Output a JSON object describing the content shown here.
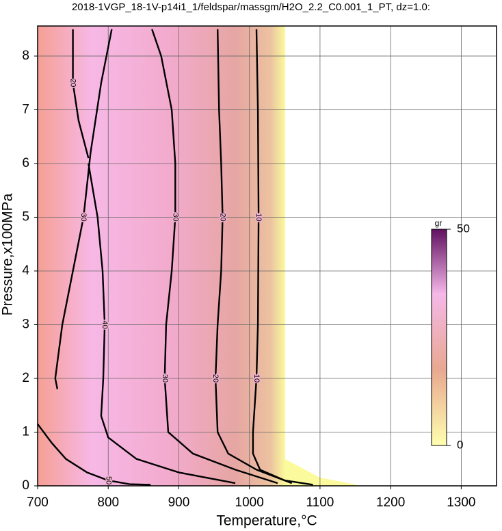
{
  "chart_data": {
    "type": "contour",
    "title": "2018-1VGP_18-1V-p14i1_1/feldspar/massgm/H2O_2.2_C0.001_1_PT, dz=1.0:",
    "xlabel": "Temperature,°C",
    "ylabel": "Pressure,x100MPa",
    "xlim": [
      700,
      1350
    ],
    "ylim": [
      0,
      8.5
    ],
    "xticks": [
      700,
      800,
      900,
      1000,
      1100,
      1200,
      1300
    ],
    "yticks": [
      0,
      1,
      2,
      3,
      4,
      5,
      6,
      7,
      8
    ],
    "grid": true,
    "contours": [
      {
        "level": 30,
        "x": [
          862,
          875,
          890,
          895,
          895,
          890,
          882,
          880,
          885,
          920,
          980,
          1040
        ],
        "y": [
          8.5,
          8,
          7,
          6,
          5,
          4,
          3,
          2,
          1,
          0.6,
          0.3,
          0.05
        ]
      },
      {
        "level": 20,
        "x": [
          955,
          957,
          960,
          962,
          960,
          955,
          952,
          955,
          970,
          1010,
          1060
        ],
        "y": [
          8.5,
          7,
          6,
          5,
          4,
          3,
          2,
          1,
          0.6,
          0.3,
          0.05
        ]
      },
      {
        "level": 10,
        "x": [
          1010,
          1012,
          1013,
          1012,
          1010,
          1005,
          1005,
          1015,
          1050,
          1090
        ],
        "y": [
          8.5,
          7,
          5,
          3,
          2,
          1,
          0.6,
          0.3,
          0.1,
          0.02
        ]
      },
      {
        "level": 40,
        "x": [
          772,
          785,
          792,
          795,
          793,
          790,
          800,
          840,
          900,
          980
        ],
        "y": [
          6.0,
          5,
          4,
          3,
          2,
          1.3,
          0.9,
          0.5,
          0.25,
          0.05
        ]
      },
      {
        "level": 20,
        "x": [
          750,
          750,
          758,
          772
        ],
        "y": [
          8.5,
          7.5,
          6.8,
          6.1
        ]
      },
      {
        "level": 30,
        "x": [
          805,
          790,
          775,
          765,
          750,
          735,
          725,
          728
        ],
        "y": [
          8.5,
          7.5,
          6.2,
          5,
          4,
          3,
          2,
          1.8
        ]
      },
      {
        "level": 50,
        "x": [
          700,
          720,
          740,
          770,
          800,
          830,
          860
        ],
        "y": [
          1.15,
          0.8,
          0.5,
          0.25,
          0.1,
          0.03,
          0.02
        ]
      }
    ],
    "colorbar": {
      "label": "gr",
      "lim": [
        0,
        50
      ],
      "ticks": [
        0,
        50
      ]
    }
  }
}
